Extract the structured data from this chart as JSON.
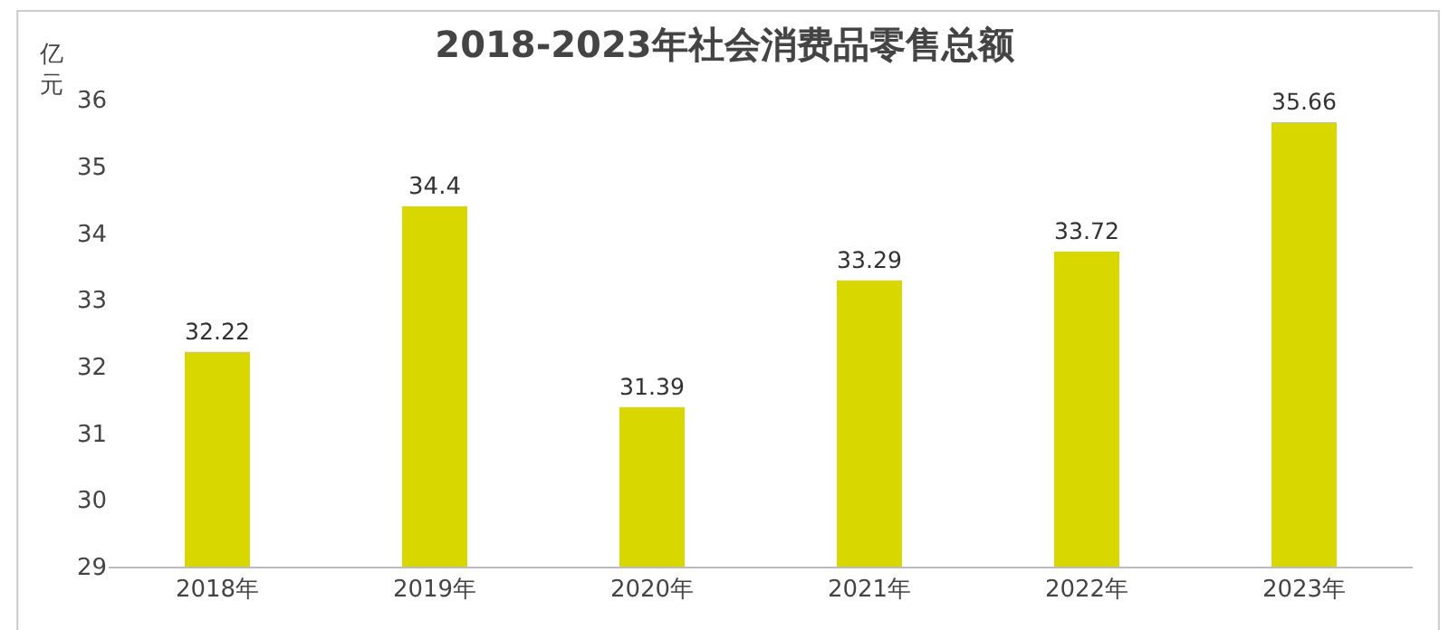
{
  "chart_data": {
    "type": "bar",
    "title": "2018-2023年社会消费品零售总额",
    "ylabel": "亿元",
    "categories": [
      "2018年",
      "2019年",
      "2020年",
      "2021年",
      "2022年",
      "2023年"
    ],
    "values": [
      32.22,
      34.4,
      31.39,
      33.29,
      33.72,
      35.66
    ],
    "color": "#d8d800",
    "ylim": [
      29,
      36
    ],
    "yticks": [
      29,
      30,
      31,
      32,
      33,
      34,
      35,
      36
    ],
    "grid": false,
    "data_labels": true
  }
}
